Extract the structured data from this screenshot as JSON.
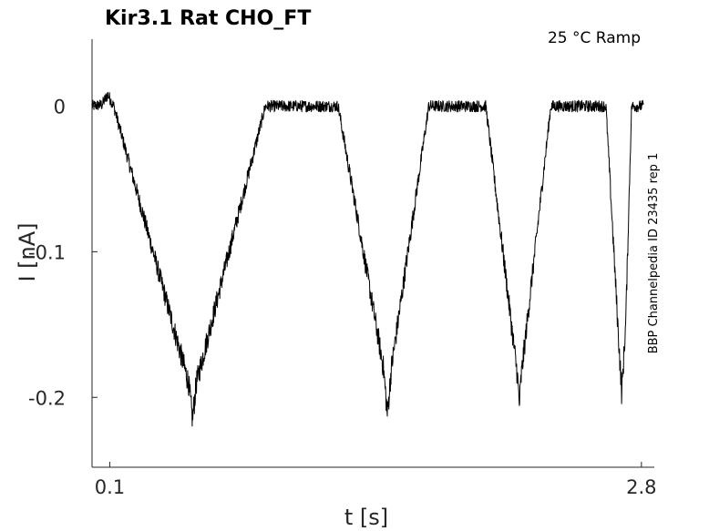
{
  "chart_data": {
    "type": "line",
    "title": "Kir3.1  Rat  CHO_FT",
    "subtitle": "25 °C  Ramp",
    "side_note": "BBP Channelpedia ID 23435 rep 1",
    "xlabel": "t [s]",
    "ylabel": "I [nA]",
    "xlim": [
      0.01,
      2.81
    ],
    "ylim": [
      -0.248,
      0.046
    ],
    "x_ticks": [
      0.1,
      2.8
    ],
    "x_tick_labels": [
      "0.1",
      "2.8"
    ],
    "y_ticks": [
      0,
      -0.1,
      -0.2
    ],
    "y_tick_labels": [
      "0",
      "-0.1",
      "-0.2"
    ],
    "grid": false,
    "series": [
      {
        "color": "#000000",
        "noise": 0.004,
        "points": [
          [
            0.01,
            0.0
          ],
          [
            0.06,
            0.001
          ],
          [
            0.09,
            0.008
          ],
          [
            0.12,
            0.0
          ],
          [
            0.5,
            -0.19
          ],
          [
            0.52,
            -0.215
          ],
          [
            0.54,
            -0.19
          ],
          [
            0.89,
            0.0
          ],
          [
            1.26,
            0.0
          ],
          [
            1.49,
            -0.18
          ],
          [
            1.51,
            -0.212
          ],
          [
            1.53,
            -0.18
          ],
          [
            1.72,
            0.0
          ],
          [
            2.01,
            0.0
          ],
          [
            2.17,
            -0.185
          ],
          [
            2.18,
            -0.205
          ],
          [
            2.19,
            -0.185
          ],
          [
            2.34,
            0.0
          ],
          [
            2.62,
            0.0
          ],
          [
            2.68,
            -0.15
          ],
          [
            2.7,
            -0.197
          ],
          [
            2.72,
            -0.15
          ],
          [
            2.75,
            0.0
          ],
          [
            2.81,
            0.0
          ]
        ]
      }
    ]
  }
}
